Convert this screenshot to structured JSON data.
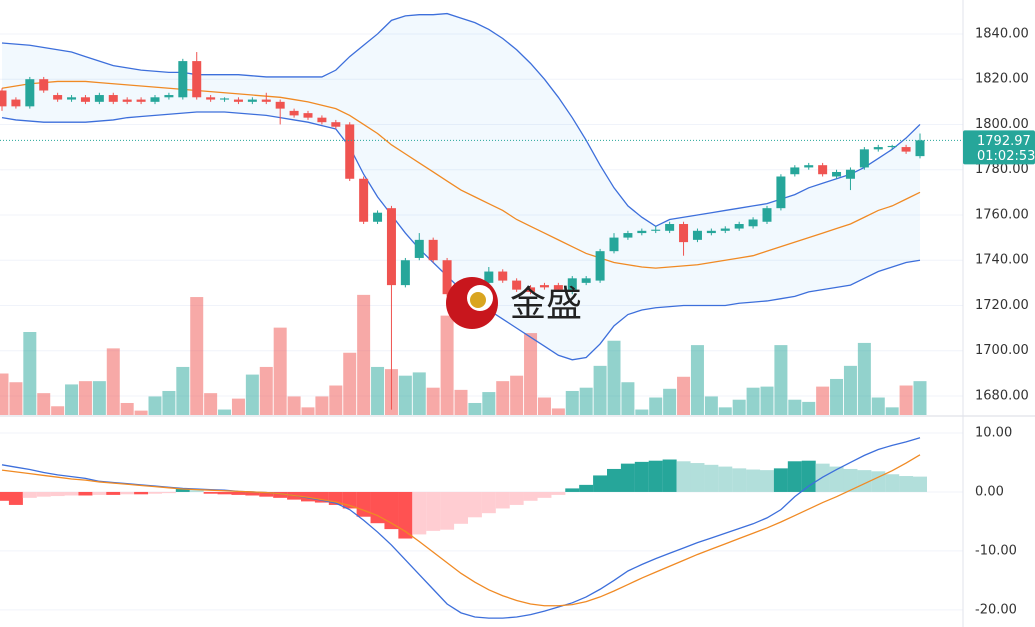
{
  "chart_data": {
    "type": "candlestick",
    "watermark": "金盛",
    "countdown": "01:02:53",
    "up_color": "#26a69a",
    "down_color": "#ef5350",
    "ylim": [
      1671.6,
      1855
    ],
    "yticks": [
      {
        "value": 1680,
        "label": "1680.00"
      },
      {
        "value": 1700,
        "label": "1700.00"
      },
      {
        "value": 1720,
        "label": "1720.00"
      },
      {
        "value": 1740,
        "label": "1740.00"
      },
      {
        "value": 1760,
        "label": "1760.00"
      },
      {
        "value": 1780,
        "label": "1780.00"
      },
      {
        "value": 1800,
        "label": "1800.00"
      },
      {
        "value": 1820,
        "label": "1820.00"
      },
      {
        "value": 1840,
        "label": "1840.00"
      }
    ],
    "volume_lim": [
      0,
      380
    ],
    "y2lim": [
      -22.9,
      12.2
    ],
    "y2ticks": [
      {
        "value": 10,
        "label": "10.00"
      },
      {
        "value": 0,
        "label": "0.00"
      },
      {
        "value": -10,
        "label": "-10.00"
      },
      {
        "value": -20,
        "label": "-20.00"
      }
    ],
    "open": [
      1815,
      1811,
      1808,
      1820,
      1813,
      1811,
      1812,
      1810,
      1813,
      1811,
      1811,
      1810,
      1812,
      1812,
      1828,
      1812,
      1811,
      1811,
      1810,
      1811,
      1810,
      1806,
      1805,
      1803,
      1801,
      1800,
      1776,
      1757,
      1763,
      1729,
      1741,
      1749,
      1740,
      1726,
      1725,
      1730,
      1735,
      1731,
      1728,
      1729,
      1729,
      1726,
      1730,
      1731,
      1744,
      1750,
      1752,
      1753,
      1753,
      1756,
      1749,
      1752,
      1753,
      1754,
      1755,
      1757,
      1763,
      1778,
      1781,
      1782,
      1777,
      1776,
      1781,
      1789,
      1790,
      1790,
      1786
    ],
    "high": [
      1816,
      1812,
      1821,
      1821,
      1814,
      1813,
      1813,
      1814,
      1814,
      1812,
      1812,
      1813,
      1814,
      1829,
      1832,
      1813,
      1812,
      1812,
      1812,
      1814,
      1811,
      1807,
      1806,
      1804,
      1802,
      1801,
      1777,
      1762,
      1764,
      1741,
      1752,
      1750,
      1741,
      1727,
      1731,
      1737,
      1736,
      1732,
      1729,
      1730,
      1730,
      1733,
      1733,
      1745,
      1752,
      1753,
      1754,
      1755,
      1757,
      1757,
      1754,
      1754,
      1755,
      1757,
      1759,
      1764,
      1778,
      1782,
      1783,
      1783,
      1780,
      1781,
      1790,
      1791,
      1791,
      1791,
      1796
    ],
    "low": [
      1806,
      1807,
      1807,
      1814,
      1810,
      1810,
      1809,
      1809,
      1809,
      1809,
      1809,
      1809,
      1811,
      1811,
      1811,
      1810,
      1810,
      1809,
      1809,
      1809,
      1800,
      1803,
      1802,
      1800,
      1798,
      1775,
      1756,
      1756,
      1674,
      1728,
      1740,
      1739,
      1724,
      1721,
      1724,
      1729,
      1730,
      1726,
      1725,
      1727,
      1726,
      1725,
      1729,
      1730,
      1743,
      1749,
      1751,
      1752,
      1752,
      1742,
      1748,
      1751,
      1752,
      1753,
      1754,
      1756,
      1762,
      1777,
      1780,
      1777,
      1776,
      1771,
      1780,
      1788,
      1789,
      1787,
      1785
    ],
    "close": [
      1808,
      1808,
      1820,
      1815,
      1811,
      1812,
      1810,
      1813,
      1810,
      1810,
      1810,
      1812,
      1813,
      1828,
      1812,
      1811,
      1811.5,
      1810,
      1811,
      1810,
      1807,
      1804,
      1803,
      1801,
      1799,
      1776,
      1757,
      1761,
      1729,
      1740,
      1749,
      1740,
      1725,
      1722,
      1730,
      1735,
      1731,
      1727,
      1726,
      1728,
      1727,
      1732,
      1732,
      1744,
      1750,
      1752,
      1753,
      1753.5,
      1756,
      1748,
      1753,
      1753,
      1754,
      1756,
      1758,
      1763,
      1777,
      1781,
      1782,
      1778,
      1779,
      1780,
      1789,
      1790,
      1790.5,
      1788,
      1792.97
    ],
    "volume": [
      38,
      30,
      76,
      20,
      8,
      28,
      31,
      31,
      61,
      11,
      4,
      17,
      22,
      44,
      108,
      20,
      5,
      15,
      37,
      44,
      80,
      17,
      7,
      17,
      27,
      57,
      110,
      44,
      42,
      36,
      39,
      25,
      91,
      23,
      11,
      21,
      31,
      36,
      75,
      16,
      6,
      22,
      25,
      45,
      68,
      30,
      5,
      16,
      24,
      35,
      64,
      17,
      7,
      14,
      25,
      26,
      64,
      14,
      12,
      26,
      33,
      45,
      66,
      16,
      7,
      27,
      31
    ],
    "bands": [
      {
        "color": "#3d6fdb",
        "values": [
          1836,
          1835.5,
          1835,
          1834,
          1833,
          1832,
          1830,
          1828,
          1826,
          1825,
          1824,
          1823.5,
          1823,
          1823,
          1822,
          1822,
          1822,
          1822,
          1821.5,
          1821,
          1821,
          1821,
          1821,
          1821,
          1824,
          1830,
          1835,
          1840,
          1846,
          1848,
          1848.5,
          1848.5,
          1849,
          1847,
          1845,
          1842,
          1838,
          1833,
          1827,
          1820,
          1812,
          1803,
          1793,
          1782,
          1772,
          1764,
          1759,
          1755,
          1758,
          1759,
          1760,
          1761,
          1762,
          1763,
          1764,
          1765,
          1767,
          1769,
          1772,
          1774,
          1776,
          1778,
          1781,
          1785,
          1789,
          1794,
          1800
        ]
      },
      {
        "color": "#f08a24",
        "values": [
          1816,
          1817,
          1818,
          1818.5,
          1819,
          1819,
          1819,
          1818.5,
          1818,
          1817.5,
          1817,
          1816.5,
          1816,
          1815.5,
          1815,
          1814.5,
          1814,
          1813.5,
          1813,
          1812.5,
          1812,
          1811,
          1810,
          1808.5,
          1807,
          1804,
          1800,
          1796,
          1791,
          1787,
          1783,
          1779,
          1775,
          1771,
          1768,
          1765,
          1762,
          1758,
          1755,
          1752,
          1749,
          1746,
          1743,
          1741,
          1739,
          1738,
          1737,
          1736.5,
          1737,
          1737.5,
          1738,
          1739,
          1740,
          1741,
          1742,
          1744,
          1746,
          1748,
          1750,
          1752,
          1754,
          1756,
          1759,
          1762,
          1764,
          1767,
          1770
        ]
      },
      {
        "color": "#3d6fdb",
        "values": [
          1803,
          1802,
          1801.5,
          1801,
          1801,
          1801,
          1801,
          1801.5,
          1802,
          1803,
          1803.5,
          1804,
          1804.5,
          1805,
          1805.5,
          1805.5,
          1805.5,
          1805,
          1804.5,
          1804,
          1803,
          1802,
          1801,
          1799.5,
          1798,
          1790,
          1778,
          1768,
          1760,
          1752,
          1745,
          1739,
          1733,
          1727,
          1722,
          1718,
          1714,
          1710,
          1706,
          1702,
          1698,
          1696,
          1697,
          1703,
          1711,
          1716,
          1718,
          1719,
          1719.5,
          1720,
          1720,
          1720,
          1720,
          1721,
          1721.5,
          1722,
          1723,
          1724,
          1726,
          1727,
          1728,
          1729,
          1732,
          1735,
          1737,
          1739,
          1740
        ]
      }
    ],
    "macd_hist": [
      -1.5,
      -2.2,
      -1.0,
      -0.8,
      -0.7,
      -0.6,
      -0.6,
      -0.5,
      -0.5,
      -0.4,
      -0.4,
      -0.3,
      -0.2,
      0.5,
      0.3,
      -0.3,
      -0.4,
      -0.5,
      -0.6,
      -0.8,
      -1.0,
      -1.3,
      -1.6,
      -1.8,
      -2.2,
      -2.8,
      -4.2,
      -5.3,
      -6.3,
      -7.9,
      -7.2,
      -6.6,
      -6.4,
      -5.4,
      -4.3,
      -3.6,
      -2.8,
      -2.2,
      -1.5,
      -1.0,
      -0.5,
      0.6,
      1.2,
      2.8,
      3.9,
      4.8,
      5.1,
      5.3,
      5.5,
      5.2,
      4.9,
      4.6,
      4.3,
      4.0,
      3.8,
      3.7,
      4.0,
      5.2,
      5.3,
      4.8,
      4.3,
      3.9,
      3.7,
      3.5,
      3.0,
      2.7,
      2.6
    ],
    "macd_lines": [
      {
        "color": "#3d6fdb",
        "values": [
          4.6,
          4.2,
          3.8,
          3.3,
          2.9,
          2.6,
          2.3,
          1.8,
          1.6,
          1.4,
          1.2,
          1.0,
          0.8,
          0.6,
          0.5,
          0.4,
          0.3,
          0.1,
          0,
          -0.1,
          -0.3,
          -0.6,
          -1.0,
          -1.4,
          -1.9,
          -3.0,
          -4.8,
          -6.8,
          -9.0,
          -11.5,
          -14,
          -16.5,
          -19,
          -20.5,
          -21.2,
          -21.4,
          -21.4,
          -21.2,
          -20.8,
          -20.2,
          -19.5,
          -18.8,
          -17.8,
          -16.5,
          -15,
          -13.4,
          -12.3,
          -11.3,
          -10.4,
          -9.5,
          -8.6,
          -7.8,
          -7.0,
          -6.2,
          -5.4,
          -4.4,
          -3.0,
          -0.8,
          1.0,
          2.5,
          3.8,
          5.0,
          6.2,
          7.2,
          7.9,
          8.5,
          9.2
        ]
      },
      {
        "color": "#f08a24",
        "values": [
          3.7,
          3.4,
          3.1,
          2.8,
          2.5,
          2.2,
          2.0,
          1.7,
          1.5,
          1.3,
          1.1,
          0.9,
          0.7,
          0.5,
          0.4,
          0.3,
          0.2,
          0.1,
          0,
          -0.1,
          -0.3,
          -0.6,
          -0.9,
          -1.3,
          -1.7,
          -2.3,
          -3.1,
          -4.0,
          -5.3,
          -6.7,
          -8.4,
          -10.2,
          -12.0,
          -13.8,
          -15.3,
          -16.6,
          -17.6,
          -18.4,
          -19.0,
          -19.3,
          -19.3,
          -19.1,
          -18.6,
          -17.8,
          -16.8,
          -15.7,
          -14.6,
          -13.6,
          -12.6,
          -11.6,
          -10.6,
          -9.7,
          -8.8,
          -7.9,
          -7.0,
          -6.1,
          -5.1,
          -4.0,
          -2.9,
          -1.8,
          -0.8,
          0.3,
          1.4,
          2.5,
          3.6,
          4.9,
          6.3
        ]
      }
    ]
  }
}
